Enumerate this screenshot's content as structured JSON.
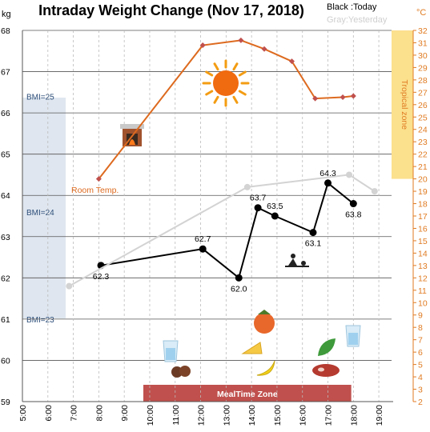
{
  "chart_data": {
    "type": "line",
    "title": "Intraday Weight Change (Nov 17, 2018)",
    "legend": {
      "today": "Black :Today",
      "yesterday": "Gray:Yesterday"
    },
    "y_left_unit": "kg",
    "y_right_unit": "°C",
    "y_left_range": [
      59,
      68
    ],
    "y_right_range": [
      2,
      32
    ],
    "x_ticks": [
      "5:00",
      "6:00",
      "7:00",
      "8:00",
      "9:00",
      "10:00",
      "11:00",
      "12:00",
      "13:00",
      "14:00",
      "15:00",
      "16:00",
      "17:00",
      "18:00",
      "19:00"
    ],
    "y_left_ticks": [
      59,
      60,
      61,
      62,
      63,
      64,
      65,
      66,
      67,
      68
    ],
    "y_right_ticks": [
      2,
      3,
      4,
      5,
      6,
      7,
      8,
      9,
      10,
      11,
      12,
      13,
      14,
      15,
      16,
      17,
      18,
      19,
      20,
      21,
      22,
      23,
      24,
      25,
      26,
      27,
      28,
      29,
      30,
      31,
      32
    ],
    "series": [
      {
        "name": "Black :Today",
        "color": "#000000",
        "x": [
          "8:05",
          "12:05",
          "13:30",
          "14:15",
          "14:55",
          "16:25",
          "17:00",
          "18:00"
        ],
        "values": [
          62.3,
          62.7,
          62.0,
          63.7,
          63.5,
          63.1,
          64.3,
          63.8
        ],
        "labels": [
          "62.3",
          "62.7",
          "62.0",
          "63.7",
          "63.5",
          "63.1",
          "64.3",
          "63.8"
        ]
      },
      {
        "name": "Gray:Yesterday",
        "color": "#d3d3d3",
        "x": [
          "6:50",
          "13:50",
          "17:50",
          "18:50"
        ],
        "values": [
          61.8,
          64.2,
          64.5,
          64.1
        ]
      },
      {
        "name": "Room Temp.",
        "color": "#dd6a1f",
        "axis": "right",
        "x": [
          "8:00",
          "12:05",
          "13:35",
          "14:30",
          "15:35",
          "16:30",
          "17:35",
          "18:00"
        ],
        "values": [
          20,
          30.8,
          31.2,
          30.5,
          29.5,
          26.5,
          26.6,
          26.7
        ]
      }
    ],
    "bands": {
      "bmi": {
        "color": "#dfe6ef",
        "labels": [
          "BMI=25",
          "BMI=24",
          "BMI=23"
        ],
        "values": [
          66.4,
          63.6,
          61.0
        ]
      },
      "tropical": {
        "label": "Tropical zone",
        "color": "#fbe08d",
        "from_c": 20,
        "to_c": 32
      },
      "meal": {
        "label": "MealTime Zone",
        "color": "#c0504d",
        "from": "9:45",
        "to": "17:55"
      }
    },
    "annotations": {
      "room_temp_label": "Room Temp."
    },
    "icons": [
      "fireplace-icon",
      "sun-icon",
      "water-glass-icon",
      "cookies-icon",
      "persimmon-icon",
      "cheese-icon",
      "banana-icon",
      "leaf-icon",
      "steak-icon",
      "water-glass-icon",
      "tea-ceremony-icon"
    ],
    "grid": true,
    "colors": {
      "axis_right": "#e07b22",
      "grid": "#555555"
    }
  }
}
